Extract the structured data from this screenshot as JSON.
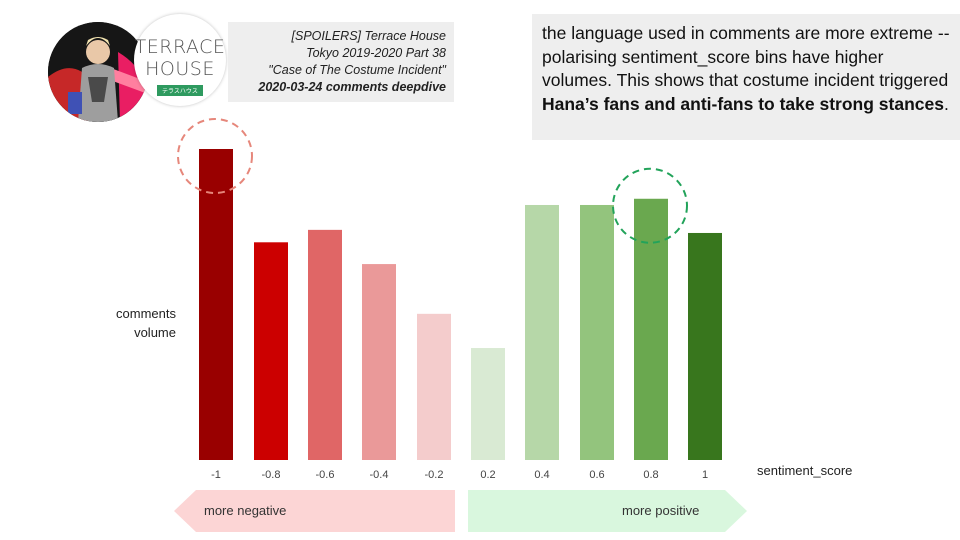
{
  "header": {
    "thumbnail_icon": "person-photo-icon",
    "logo": {
      "line1": "TERRACE",
      "line2": "HOUSE",
      "sub": "テラスハウス"
    },
    "title_lines": [
      "[SPOILERS] Terrace House",
      "Tokyo 2019-2020 Part 38",
      "\"Case of The Costume Incident\""
    ],
    "title_date": "2020-03-24 comments deepdive"
  },
  "note": {
    "text_plain": "the language used in comments are more extreme -- polarising sentiment_score bins have higher volumes. This shows that costume incident triggered ",
    "text_bold": "Hana’s fans and anti-fans to take strong stances",
    "text_end": "."
  },
  "arrows": {
    "negative_label": "more negative",
    "positive_label": "more positive",
    "negative_color": "#fcd5d5",
    "positive_color": "#d9f7de"
  },
  "chart_data": {
    "type": "bar",
    "categories": [
      "-1",
      "-0.8",
      "-0.6",
      "-0.4",
      "-0.2",
      "0.2",
      "0.4",
      "0.6",
      "0.8",
      "1"
    ],
    "values": [
      100,
      70,
      74,
      63,
      47,
      36,
      82,
      82,
      84,
      73
    ],
    "colors": [
      "#990000",
      "#cc0000",
      "#e06666",
      "#ea9999",
      "#f4cccc",
      "#d9ead3",
      "#b6d7a8",
      "#93c47d",
      "#6aa84f",
      "#38761d"
    ],
    "xlabel": "sentiment_score",
    "ylabel": [
      "comments",
      "volume"
    ],
    "ylim": [
      0,
      100
    ],
    "grid": false,
    "highlighted_categories": [
      "-1",
      "0.8"
    ],
    "highlight_colors": [
      "#e6877b",
      "#22a35a"
    ]
  }
}
